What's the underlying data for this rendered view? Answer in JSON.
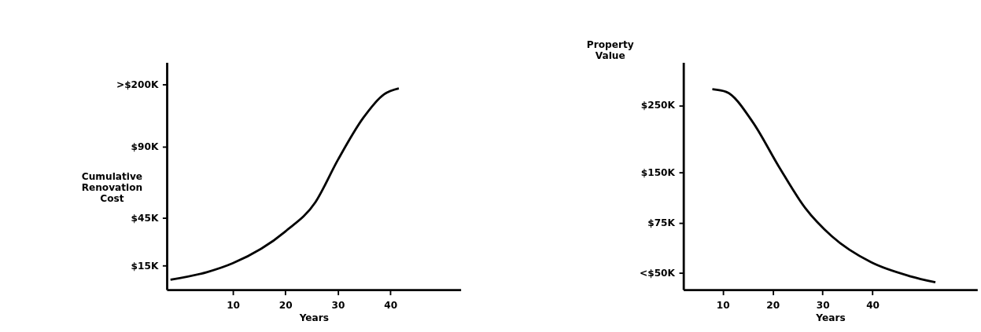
{
  "chart_data": [
    {
      "type": "line",
      "xlabel": "Years",
      "ylabel": "Cumulative Renovation Cost",
      "color": "#000000",
      "line_style": "solid",
      "marker": "none",
      "grid": false,
      "x": [
        -1.9,
        5,
        10,
        20,
        25.7,
        30,
        34.8,
        38.8,
        41.6
      ],
      "values": [
        6.3,
        11,
        16.7,
        36.7,
        55,
        81.7,
        108,
        123,
        126.7
      ],
      "xlim": [
        -2.6,
        53.4
      ],
      "ylim": [
        0,
        143
      ],
      "xticks": [
        10,
        20,
        30,
        40
      ],
      "yticks": [
        {
          "value": 15,
          "label": "$15K"
        },
        {
          "value": 45,
          "label": "$45K"
        },
        {
          "value": 90,
          "label": "$90K"
        },
        {
          "value": 129,
          "label": ">$200K"
        }
      ]
    },
    {
      "type": "line",
      "xlabel": "Years",
      "ylabel": "Property Value",
      "color": "#000000",
      "line_style": "solid",
      "marker": "none",
      "grid": false,
      "x": [
        7.9,
        10.7,
        16,
        21.2,
        26.5,
        31.8,
        39.7,
        47.6,
        52.6
      ],
      "values": [
        274,
        270,
        225,
        159,
        97,
        55,
        16,
        -5,
        -14
      ],
      "xlim": [
        2.1,
        61
      ],
      "ylim": [
        -25,
        314
      ],
      "xticks": [
        10,
        20,
        30,
        40
      ],
      "yticks": [
        {
          "value": 0,
          "label": "<$50K"
        },
        {
          "value": 75,
          "label": "$75K"
        },
        {
          "value": 150,
          "label": "$150K"
        },
        {
          "value": 250,
          "label": "$250K"
        }
      ]
    }
  ]
}
